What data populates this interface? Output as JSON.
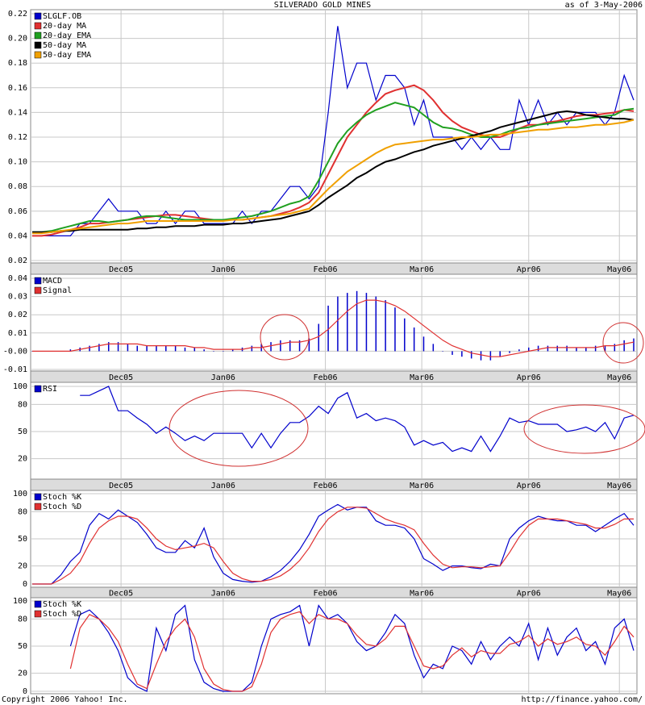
{
  "header": {
    "title": "SILVERADO GOLD MINES",
    "date": "as of  3-May-2006"
  },
  "footer": {
    "copyright": "Copyright 2006 Yahoo! Inc.",
    "url": "http://finance.yahoo.com/"
  },
  "chart_data": [
    {
      "type": "line",
      "legend": "upper left",
      "grid": true,
      "xlim": [
        0,
        63
      ],
      "xticks": [
        {
          "value": 9.3,
          "label": "Dec05"
        },
        {
          "value": 20,
          "label": "Jan06"
        },
        {
          "value": 30.7,
          "label": "Feb06"
        },
        {
          "value": 40.8,
          "label": "Mar06"
        },
        {
          "value": 52,
          "label": "Apr06"
        },
        {
          "value": 61.5,
          "label": "May06"
        }
      ],
      "ylim": [
        0.02,
        0.22
      ],
      "yticks": [
        0.02,
        0.04,
        0.06,
        0.08,
        {
          "value": 0.1,
          "label": "0.10"
        },
        0.12,
        0.14,
        0.16,
        0.18,
        {
          "value": 0.2,
          "label": "0.20"
        },
        0.22
      ],
      "series": [
        {
          "name": "SLGLF.OB",
          "color": "#0000cc",
          "values": [
            0.04,
            0.04,
            0.04,
            0.04,
            0.04,
            0.05,
            0.05,
            0.06,
            0.07,
            0.06,
            0.06,
            0.06,
            0.05,
            0.05,
            0.06,
            0.05,
            0.06,
            0.06,
            0.05,
            0.05,
            0.05,
            0.05,
            0.06,
            0.05,
            0.06,
            0.06,
            0.07,
            0.08,
            0.08,
            0.07,
            0.08,
            0.14,
            0.21,
            0.16,
            0.18,
            0.18,
            0.15,
            0.17,
            0.17,
            0.16,
            0.13,
            0.15,
            0.12,
            0.12,
            0.12,
            0.11,
            0.12,
            0.11,
            0.12,
            0.11,
            0.11,
            0.15,
            0.13,
            0.15,
            0.13,
            0.14,
            0.13,
            0.14,
            0.14,
            0.14,
            0.13,
            0.14,
            0.17,
            0.15
          ]
        },
        {
          "name": "20-day MA",
          "color": "#e03030",
          "values": [
            0.04,
            0.04,
            0.041,
            0.043,
            0.045,
            0.047,
            0.05,
            0.05,
            0.051,
            0.052,
            0.053,
            0.054,
            0.055,
            0.056,
            0.057,
            0.057,
            0.056,
            0.055,
            0.054,
            0.053,
            0.053,
            0.053,
            0.053,
            0.054,
            0.055,
            0.056,
            0.058,
            0.06,
            0.063,
            0.067,
            0.075,
            0.09,
            0.105,
            0.12,
            0.13,
            0.14,
            0.148,
            0.155,
            0.158,
            0.16,
            0.162,
            0.158,
            0.15,
            0.14,
            0.133,
            0.128,
            0.125,
            0.122,
            0.12,
            0.12,
            0.123,
            0.127,
            0.13,
            0.13,
            0.132,
            0.133,
            0.135,
            0.137,
            0.138,
            0.138,
            0.139,
            0.14,
            0.142,
            0.141
          ]
        },
        {
          "name": "20-day EMA",
          "color": "#20a020",
          "values": [
            0.043,
            0.043,
            0.044,
            0.046,
            0.048,
            0.05,
            0.052,
            0.052,
            0.051,
            0.052,
            0.053,
            0.055,
            0.056,
            0.056,
            0.055,
            0.054,
            0.053,
            0.053,
            0.053,
            0.053,
            0.053,
            0.054,
            0.055,
            0.056,
            0.058,
            0.06,
            0.063,
            0.066,
            0.068,
            0.072,
            0.085,
            0.1,
            0.115,
            0.125,
            0.132,
            0.138,
            0.142,
            0.145,
            0.148,
            0.146,
            0.144,
            0.138,
            0.132,
            0.128,
            0.127,
            0.125,
            0.122,
            0.12,
            0.12,
            0.122,
            0.125,
            0.127,
            0.128,
            0.13,
            0.131,
            0.132,
            0.133,
            0.134,
            0.135,
            0.136,
            0.137,
            0.138,
            0.142,
            0.143
          ]
        },
        {
          "name": "50-day MA",
          "color": "#000000",
          "values": [
            0.043,
            0.043,
            0.043,
            0.044,
            0.044,
            0.045,
            0.045,
            0.045,
            0.045,
            0.045,
            0.045,
            0.046,
            0.046,
            0.047,
            0.047,
            0.048,
            0.048,
            0.048,
            0.049,
            0.049,
            0.049,
            0.05,
            0.05,
            0.051,
            0.052,
            0.053,
            0.054,
            0.056,
            0.058,
            0.06,
            0.065,
            0.071,
            0.076,
            0.081,
            0.087,
            0.091,
            0.096,
            0.1,
            0.102,
            0.105,
            0.108,
            0.11,
            0.113,
            0.115,
            0.117,
            0.119,
            0.121,
            0.123,
            0.125,
            0.128,
            0.13,
            0.132,
            0.134,
            0.136,
            0.138,
            0.14,
            0.141,
            0.14,
            0.138,
            0.137,
            0.136,
            0.135,
            0.135,
            0.134
          ]
        },
        {
          "name": "50-day EMA",
          "color": "#f0a000",
          "values": [
            0.042,
            0.042,
            0.043,
            0.044,
            0.045,
            0.046,
            0.047,
            0.048,
            0.049,
            0.05,
            0.05,
            0.051,
            0.052,
            0.052,
            0.052,
            0.052,
            0.052,
            0.052,
            0.052,
            0.052,
            0.052,
            0.053,
            0.053,
            0.054,
            0.055,
            0.056,
            0.057,
            0.058,
            0.06,
            0.062,
            0.07,
            0.078,
            0.085,
            0.092,
            0.097,
            0.102,
            0.107,
            0.111,
            0.114,
            0.115,
            0.116,
            0.117,
            0.118,
            0.118,
            0.119,
            0.12,
            0.12,
            0.121,
            0.122,
            0.122,
            0.123,
            0.124,
            0.125,
            0.126,
            0.126,
            0.127,
            0.128,
            0.128,
            0.129,
            0.13,
            0.13,
            0.131,
            0.132,
            0.134
          ]
        }
      ]
    },
    {
      "type": "combo",
      "legend": "upper left",
      "grid": true,
      "xlim": [
        0,
        63
      ],
      "xticks": [
        {
          "value": 9.3,
          "label": "Dec05"
        },
        {
          "value": 20,
          "label": "Jan06"
        },
        {
          "value": 30.7,
          "label": "Feb06"
        },
        {
          "value": 40.8,
          "label": "Mar06"
        },
        {
          "value": 52,
          "label": "Apr06"
        },
        {
          "value": 61.5,
          "label": "May06"
        }
      ],
      "ylim": [
        -0.01,
        0.04
      ],
      "yticks": [
        -0.01,
        {
          "value": 0,
          "label": "-0.00"
        },
        0.01,
        0.02,
        0.03,
        0.04
      ],
      "series": [
        {
          "name": "MACD",
          "color": "#0000cc",
          "mark": "bar",
          "values": [
            0,
            0,
            0,
            0,
            0.001,
            0.002,
            0.003,
            0.004,
            0.005,
            0.005,
            0.004,
            0.003,
            0.003,
            0.003,
            0.003,
            0.003,
            0.002,
            0.002,
            0.001,
            0,
            0,
            0.001,
            0.002,
            0.003,
            0.004,
            0.005,
            0.006,
            0.006,
            0.006,
            0.007,
            0.015,
            0.025,
            0.03,
            0.032,
            0.033,
            0.032,
            0.03,
            0.028,
            0.024,
            0.018,
            0.013,
            0.008,
            0.004,
            0,
            -0.002,
            -0.003,
            -0.004,
            -0.005,
            -0.005,
            -0.003,
            -0.001,
            0.001,
            0.002,
            0.003,
            0.003,
            0.003,
            0.003,
            0.002,
            0.002,
            0.003,
            0.003,
            0.004,
            0.006,
            0.007
          ]
        },
        {
          "name": "Signal",
          "color": "#e03030",
          "mark": "line",
          "values": [
            0,
            0,
            0,
            0,
            0,
            0.001,
            0.002,
            0.003,
            0.004,
            0.004,
            0.004,
            0.004,
            0.003,
            0.003,
            0.003,
            0.003,
            0.003,
            0.002,
            0.002,
            0.001,
            0.001,
            0.001,
            0.001,
            0.002,
            0.002,
            0.003,
            0.004,
            0.005,
            0.005,
            0.006,
            0.008,
            0.012,
            0.017,
            0.022,
            0.026,
            0.028,
            0.028,
            0.027,
            0.025,
            0.022,
            0.018,
            0.014,
            0.01,
            0.006,
            0.003,
            0.001,
            -0.001,
            -0.002,
            -0.003,
            -0.003,
            -0.002,
            -0.001,
            0,
            0.001,
            0.002,
            0.002,
            0.002,
            0.002,
            0.002,
            0.002,
            0.003,
            0.003,
            0.004,
            0.005
          ]
        }
      ]
    },
    {
      "type": "line",
      "legend": "upper left",
      "grid": true,
      "xlim": [
        0,
        63
      ],
      "xticks": [
        {
          "value": 9.3,
          "label": "Dec05"
        },
        {
          "value": 20,
          "label": "Jan06"
        },
        {
          "value": 30.7,
          "label": "Feb06"
        },
        {
          "value": 40.8,
          "label": "Mar06"
        },
        {
          "value": 52,
          "label": "Apr06"
        },
        {
          "value": 61.5,
          "label": "May06"
        }
      ],
      "ylim": [
        0,
        100
      ],
      "yticks": [
        20,
        50,
        80,
        100
      ],
      "series": [
        {
          "name": "RSI",
          "color": "#0000cc",
          "values": [
            null,
            null,
            null,
            null,
            null,
            90,
            90,
            95,
            100,
            73,
            73,
            65,
            58,
            48,
            55,
            48,
            40,
            45,
            40,
            48,
            48,
            48,
            48,
            32,
            48,
            32,
            48,
            60,
            60,
            67,
            78,
            70,
            87,
            93,
            65,
            70,
            62,
            65,
            62,
            55,
            35,
            40,
            35,
            38,
            28,
            32,
            28,
            45,
            28,
            45,
            65,
            60,
            62,
            58,
            58,
            58,
            50,
            52,
            55,
            50,
            60,
            42,
            65,
            68
          ]
        }
      ]
    },
    {
      "type": "line",
      "legend": "upper left",
      "grid": true,
      "xlim": [
        0,
        63
      ],
      "xticks": [
        {
          "value": 9.3,
          "label": "Dec05"
        },
        {
          "value": 20,
          "label": "Jan06"
        },
        {
          "value": 30.7,
          "label": "Feb06"
        },
        {
          "value": 40.8,
          "label": "Mar06"
        },
        {
          "value": 52,
          "label": "Apr06"
        },
        {
          "value": 61.5,
          "label": "May06"
        }
      ],
      "ylim": [
        0,
        100
      ],
      "yticks": [
        0,
        20,
        50,
        80,
        100
      ],
      "series": [
        {
          "name": "Stoch %K",
          "color": "#0000cc",
          "values": [
            0,
            0,
            0,
            10,
            25,
            35,
            65,
            78,
            72,
            82,
            75,
            68,
            55,
            40,
            35,
            35,
            48,
            40,
            62,
            30,
            12,
            5,
            3,
            2,
            3,
            8,
            15,
            25,
            38,
            55,
            75,
            82,
            88,
            82,
            85,
            85,
            70,
            65,
            65,
            62,
            50,
            28,
            22,
            15,
            20,
            20,
            18,
            17,
            22,
            20,
            50,
            62,
            70,
            75,
            72,
            70,
            70,
            65,
            65,
            58,
            65,
            72,
            78,
            65
          ]
        },
        {
          "name": "Stoch %D",
          "color": "#e03030",
          "values": [
            0,
            0,
            0,
            5,
            12,
            25,
            45,
            62,
            70,
            75,
            75,
            72,
            62,
            50,
            42,
            38,
            40,
            42,
            45,
            40,
            25,
            12,
            6,
            3,
            3,
            5,
            9,
            16,
            26,
            40,
            58,
            72,
            80,
            85,
            85,
            84,
            78,
            72,
            68,
            65,
            60,
            45,
            32,
            22,
            18,
            19,
            19,
            18,
            19,
            20,
            35,
            52,
            65,
            72,
            72,
            72,
            70,
            68,
            66,
            62,
            62,
            66,
            72,
            72
          ]
        }
      ]
    },
    {
      "type": "line",
      "legend": "upper left",
      "grid": true,
      "xlim": [
        0,
        63
      ],
      "xticks": [
        9.3,
        20,
        30.7,
        40.8,
        52,
        61.5
      ],
      "ylim": [
        0,
        100
      ],
      "yticks": [
        0,
        20,
        50,
        80,
        100
      ],
      "series": [
        {
          "name": "Stoch %K",
          "color": "#0000cc",
          "values": [
            null,
            null,
            null,
            null,
            50,
            85,
            90,
            80,
            65,
            45,
            15,
            5,
            0,
            70,
            45,
            85,
            95,
            35,
            10,
            3,
            0,
            0,
            0,
            10,
            50,
            80,
            85,
            88,
            95,
            50,
            95,
            80,
            85,
            75,
            55,
            45,
            50,
            65,
            85,
            75,
            40,
            15,
            30,
            25,
            50,
            45,
            30,
            55,
            35,
            50,
            60,
            50,
            75,
            35,
            70,
            40,
            60,
            70,
            45,
            55,
            30,
            70,
            80,
            45
          ]
        },
        {
          "name": "Stoch %D",
          "color": "#e03030",
          "values": [
            null,
            null,
            null,
            null,
            25,
            70,
            85,
            80,
            70,
            55,
            30,
            8,
            3,
            30,
            55,
            70,
            80,
            60,
            25,
            8,
            2,
            0,
            0,
            5,
            30,
            65,
            80,
            85,
            88,
            75,
            85,
            80,
            80,
            75,
            62,
            52,
            50,
            58,
            72,
            72,
            50,
            28,
            25,
            28,
            40,
            48,
            38,
            45,
            42,
            42,
            52,
            55,
            62,
            50,
            58,
            52,
            55,
            60,
            52,
            50,
            40,
            55,
            72,
            60
          ]
        }
      ]
    }
  ]
}
